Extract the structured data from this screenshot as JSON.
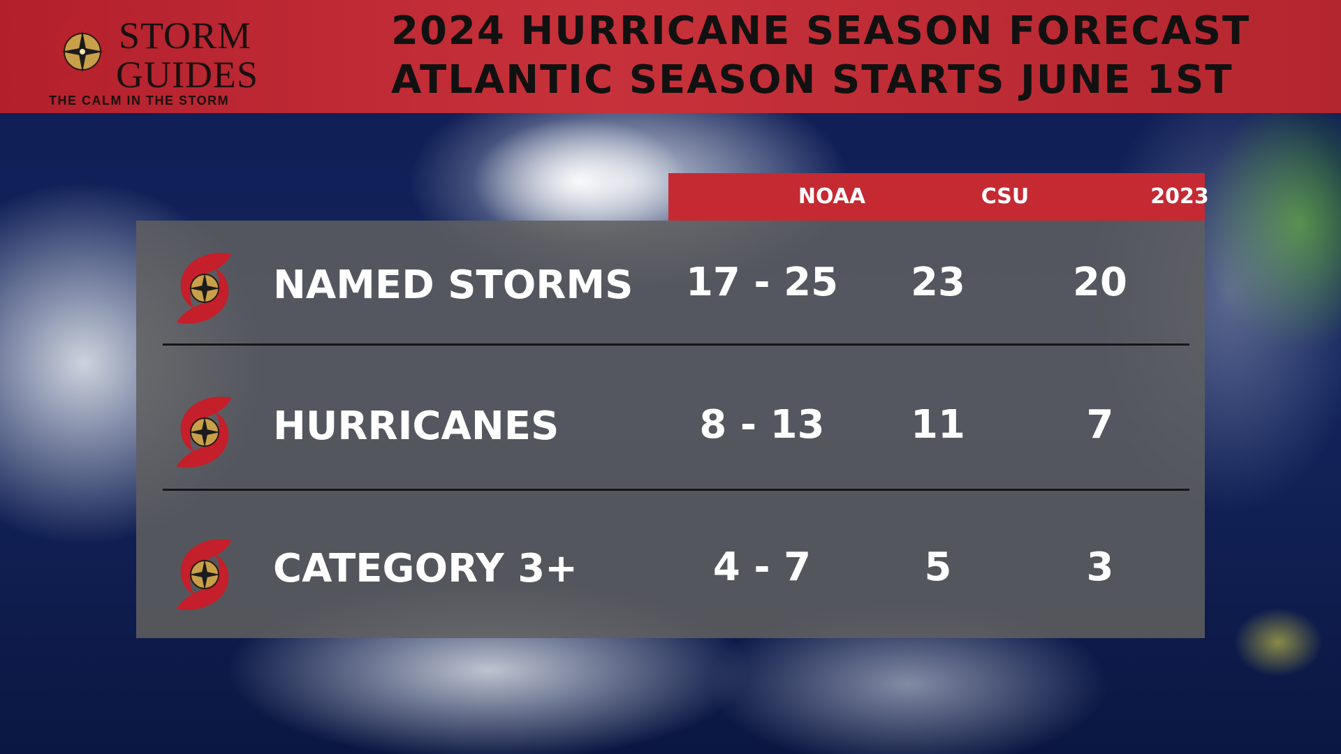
{
  "brand": {
    "line1": "STORM",
    "line2": "GUIDES",
    "tagline": "THE CALM IN THE STORM"
  },
  "title": {
    "line1": "2024 HURRICANE SEASON FORECAST",
    "line2": "ATLANTIC SEASON STARTS JUNE 1ST"
  },
  "table": {
    "columns": [
      "NOAA",
      "CSU",
      "2023"
    ],
    "rows": [
      {
        "label": "NAMED STORMS",
        "icon": "hurricane-icon",
        "values": [
          "17 - 25",
          "23",
          "20"
        ]
      },
      {
        "label": "HURRICANES",
        "icon": "hurricane-icon",
        "values": [
          "8 - 13",
          "11",
          "7"
        ]
      },
      {
        "label": "CATEGORY 3+",
        "icon": "hurricane-icon",
        "values": [
          "4 - 7",
          "5",
          "3"
        ]
      }
    ]
  },
  "colors": {
    "header_red": "#c7313a",
    "accent_red": "#c52a33",
    "panel_gray": "#5f5f5f",
    "text_white": "#ffffff",
    "compass_gold": "#c9a04a"
  }
}
